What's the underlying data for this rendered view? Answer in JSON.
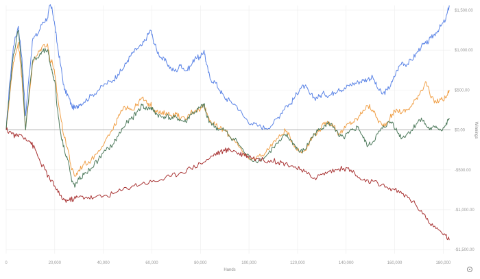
{
  "chart_data": {
    "type": "line",
    "title": "",
    "xlabel": "Hands",
    "ylabel": "Winnings",
    "xlim": [
      0,
      183000
    ],
    "ylim": [
      -1550,
      1560
    ],
    "x_ticks": [
      {
        "value": 0,
        "label": "0"
      },
      {
        "value": 20000,
        "label": "20,000"
      },
      {
        "value": 40000,
        "label": "40,000"
      },
      {
        "value": 60000,
        "label": "60,000"
      },
      {
        "value": 80000,
        "label": "80,000"
      },
      {
        "value": 100000,
        "label": "100,000"
      },
      {
        "value": 120000,
        "label": "120,000"
      },
      {
        "value": 140000,
        "label": "140,000"
      },
      {
        "value": 160000,
        "label": "160,000"
      },
      {
        "value": 180000,
        "label": "180,000"
      }
    ],
    "y_ticks": [
      {
        "value": 1500,
        "label": "$1,500.00"
      },
      {
        "value": 1000,
        "label": "$1,000.00"
      },
      {
        "value": 500,
        "label": "$500.00"
      },
      {
        "value": 0,
        "label": "$0.00"
      },
      {
        "value": -500,
        "label": "-$500.00"
      },
      {
        "value": -1000,
        "label": "-$1,000.00"
      },
      {
        "value": -1500,
        "label": "-$1,500.00"
      }
    ],
    "grid": true,
    "zero_line": true,
    "legend": "none",
    "series": [
      {
        "color": "#5b84e6",
        "x": [
          0,
          1500,
          3000,
          5000,
          6500,
          8000,
          9500,
          11000,
          13000,
          15000,
          17000,
          18000,
          19000,
          20000,
          21000,
          22500,
          24000,
          25500,
          27000,
          28500,
          30000,
          32000,
          35000,
          38000,
          41000,
          44000,
          46000,
          48000,
          50000,
          52000,
          54000,
          56000,
          58000,
          59500,
          60500,
          62000,
          64000,
          66000,
          68000,
          70000,
          72000,
          74000,
          76000,
          78000,
          80000,
          81500,
          82500,
          84000,
          86000,
          88000,
          90000,
          92000,
          95000,
          98000,
          101000,
          104000,
          107000,
          110000,
          113000,
          115000,
          117000,
          119000,
          121000,
          123000,
          125000,
          127000,
          129000,
          131000,
          133000,
          135000,
          137000,
          139000,
          141000,
          143000,
          145000,
          147000,
          149000,
          151000,
          153000,
          155000,
          157000,
          159000,
          161000,
          163000,
          165000,
          167000,
          169000,
          171000,
          173000,
          175000,
          177000,
          179000,
          181000,
          182500
        ],
        "y": [
          0,
          600,
          1050,
          1300,
          900,
          180,
          700,
          1150,
          1200,
          1350,
          1400,
          1560,
          1500,
          1320,
          1080,
          800,
          500,
          430,
          300,
          270,
          320,
          350,
          430,
          500,
          580,
          620,
          700,
          760,
          870,
          960,
          1020,
          1060,
          1170,
          1250,
          1140,
          1000,
          900,
          850,
          760,
          740,
          820,
          740,
          800,
          920,
          900,
          1000,
          820,
          640,
          600,
          500,
          400,
          370,
          300,
          160,
          80,
          50,
          20,
          80,
          200,
          300,
          320,
          420,
          520,
          550,
          450,
          400,
          420,
          460,
          430,
          470,
          520,
          500,
          560,
          580,
          600,
          620,
          640,
          660,
          520,
          450,
          500,
          600,
          750,
          850,
          820,
          880,
          960,
          1050,
          1080,
          1150,
          1220,
          1300,
          1380,
          1560
        ]
      },
      {
        "color": "#f0a048",
        "x": [
          0,
          1500,
          3000,
          5000,
          6500,
          8000,
          9500,
          11000,
          13000,
          15000,
          17000,
          18000,
          19000,
          20000,
          21000,
          22500,
          24000,
          25500,
          27000,
          28500,
          30000,
          32000,
          35000,
          38000,
          41000,
          44000,
          46000,
          48000,
          50000,
          52000,
          54000,
          56000,
          58000,
          59500,
          60500,
          62000,
          64000,
          66000,
          68000,
          70000,
          72000,
          74000,
          76000,
          78000,
          80000,
          81500,
          82500,
          84000,
          86000,
          88000,
          90000,
          92000,
          95000,
          98000,
          101000,
          104000,
          107000,
          110000,
          113000,
          115000,
          117000,
          119000,
          121000,
          123000,
          125000,
          127000,
          129000,
          131000,
          133000,
          135000,
          137000,
          139000,
          141000,
          143000,
          145000,
          147000,
          149000,
          151000,
          153000,
          155000,
          157000,
          159000,
          161000,
          163000,
          165000,
          167000,
          169000,
          171000,
          173000,
          175000,
          177000,
          179000,
          181000,
          182500
        ],
        "y": [
          0,
          450,
          850,
          1100,
          650,
          0,
          450,
          850,
          950,
          1050,
          1080,
          880,
          850,
          700,
          450,
          150,
          -100,
          -250,
          -500,
          -580,
          -500,
          -430,
          -380,
          -260,
          -120,
          0,
          150,
          250,
          300,
          250,
          320,
          400,
          330,
          320,
          270,
          230,
          200,
          220,
          180,
          200,
          150,
          130,
          220,
          250,
          260,
          320,
          220,
          120,
          60,
          20,
          0,
          -80,
          -150,
          -320,
          -380,
          -330,
          -280,
          -150,
          -80,
          0,
          -100,
          -200,
          -280,
          -250,
          -150,
          -50,
          0,
          70,
          100,
          50,
          -50,
          0,
          80,
          100,
          150,
          250,
          300,
          250,
          130,
          50,
          100,
          200,
          250,
          220,
          250,
          300,
          400,
          500,
          600,
          400,
          350,
          380,
          400,
          500
        ]
      },
      {
        "color": "#4e7a5c",
        "x": [
          0,
          1500,
          3000,
          5000,
          6500,
          8000,
          9500,
          11000,
          13000,
          15000,
          17000,
          18000,
          19000,
          20000,
          21000,
          22500,
          24000,
          25500,
          27000,
          28500,
          30000,
          32000,
          35000,
          38000,
          41000,
          44000,
          46000,
          48000,
          50000,
          52000,
          54000,
          56000,
          58000,
          59500,
          60500,
          62000,
          64000,
          66000,
          68000,
          70000,
          72000,
          74000,
          76000,
          78000,
          80000,
          81500,
          82500,
          84000,
          86000,
          88000,
          90000,
          92000,
          95000,
          98000,
          101000,
          104000,
          107000,
          110000,
          113000,
          115000,
          117000,
          119000,
          121000,
          123000,
          125000,
          127000,
          129000,
          131000,
          133000,
          135000,
          137000,
          139000,
          141000,
          143000,
          145000,
          147000,
          149000,
          151000,
          153000,
          155000,
          157000,
          159000,
          161000,
          163000,
          165000,
          167000,
          169000,
          171000,
          173000,
          175000,
          177000,
          179000,
          181000,
          182500
        ],
        "y": [
          0,
          500,
          950,
          1250,
          750,
          0,
          500,
          880,
          900,
          980,
          1000,
          850,
          720,
          620,
          280,
          -50,
          -250,
          -380,
          -650,
          -700,
          -620,
          -560,
          -480,
          -370,
          -260,
          -180,
          -80,
          20,
          100,
          150,
          230,
          310,
          260,
          280,
          250,
          200,
          160,
          180,
          140,
          160,
          120,
          100,
          200,
          230,
          280,
          320,
          180,
          100,
          40,
          0,
          0,
          -80,
          -140,
          -280,
          -370,
          -380,
          -330,
          -220,
          -140,
          -60,
          -120,
          -200,
          -280,
          -250,
          -140,
          -50,
          0,
          60,
          80,
          40,
          -80,
          -100,
          -40,
          0,
          40,
          -100,
          -200,
          -150,
          -50,
          20,
          80,
          100,
          -20,
          -100,
          -50,
          0,
          80,
          150,
          50,
          0,
          50,
          0,
          50,
          150
        ]
      },
      {
        "color": "#a83232",
        "x": [
          0,
          2000,
          4000,
          6000,
          8000,
          10000,
          12000,
          14000,
          16000,
          18000,
          20000,
          22000,
          24000,
          26000,
          28000,
          30000,
          33000,
          36000,
          40000,
          44000,
          48000,
          52000,
          56000,
          60000,
          64000,
          68000,
          72000,
          76000,
          80000,
          84000,
          86000,
          88000,
          90000,
          92000,
          94000,
          96000,
          98000,
          100000,
          103000,
          106000,
          109000,
          112000,
          115000,
          118000,
          121000,
          124000,
          127000,
          130000,
          133000,
          136000,
          139000,
          142000,
          145000,
          148000,
          151000,
          154000,
          157000,
          160000,
          163000,
          166000,
          169000,
          172000,
          175000,
          178000,
          181000,
          182500
        ],
        "y": [
          0,
          -30,
          -80,
          -60,
          -100,
          -150,
          -250,
          -400,
          -500,
          -620,
          -700,
          -820,
          -880,
          -880,
          -860,
          -840,
          -840,
          -850,
          -830,
          -800,
          -750,
          -700,
          -670,
          -650,
          -620,
          -580,
          -530,
          -480,
          -420,
          -350,
          -300,
          -280,
          -260,
          -250,
          -260,
          -300,
          -300,
          -330,
          -360,
          -380,
          -380,
          -400,
          -420,
          -450,
          -500,
          -550,
          -600,
          -560,
          -520,
          -500,
          -480,
          -500,
          -600,
          -650,
          -640,
          -700,
          -720,
          -750,
          -800,
          -850,
          -950,
          -1050,
          -1200,
          -1250,
          -1320,
          -1380
        ]
      }
    ]
  }
}
